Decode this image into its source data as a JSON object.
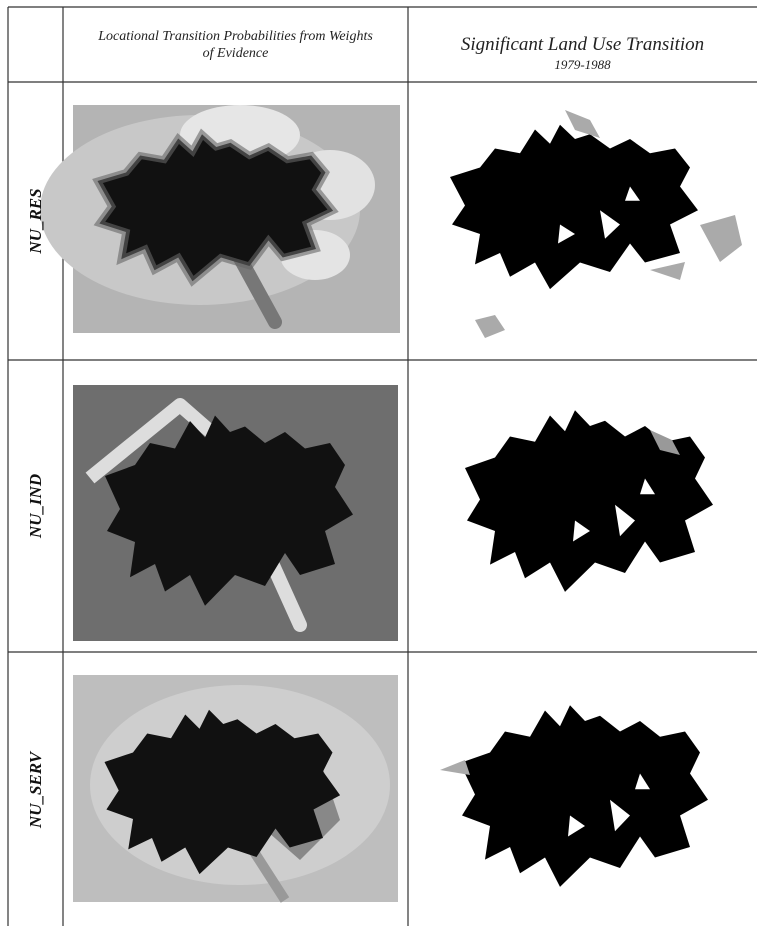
{
  "header": {
    "column_2_title": "Locational Transition Probabilities from Weights of Evidence",
    "column_3_title": "Significant Land Use Transition",
    "column_3_subtitle": "1979-1988"
  },
  "rows": [
    {
      "label": "NU_RES"
    },
    {
      "label": "NU_IND"
    },
    {
      "label": "NU_SERV"
    }
  ]
}
